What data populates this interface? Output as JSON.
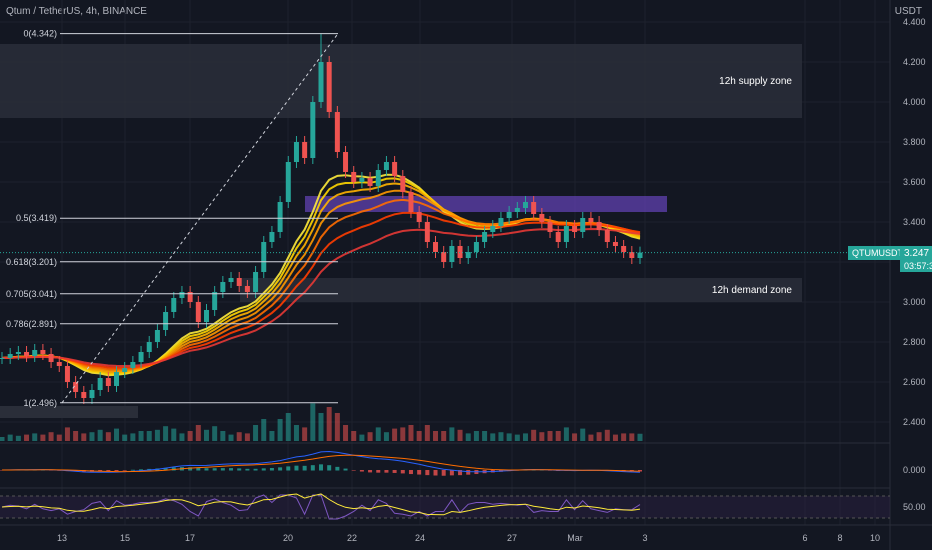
{
  "header": {
    "title": "Qtum / TetherUS, 4h, BINANCE",
    "currency": "USDT"
  },
  "ticker": {
    "symbol": "QTUMUSDT",
    "price": "3.247",
    "countdown": "03:57:36"
  },
  "chart_data": {
    "type": "candlestick",
    "y_axis": {
      "ylim": [
        2.3,
        4.4
      ],
      "ticks": [
        "4.400",
        "4.200",
        "4.000",
        "3.800",
        "3.600",
        "3.400",
        "3.200",
        "3.000",
        "2.800",
        "2.600",
        "2.400"
      ]
    },
    "x_axis": {
      "ticks": [
        "13",
        "15",
        "17",
        "20",
        "22",
        "24",
        "27",
        "Mar",
        "3",
        "6",
        "8",
        "10"
      ]
    },
    "fib_levels": [
      {
        "label": "0(4.342)",
        "value": 4.342
      },
      {
        "label": "0.5(3.419)",
        "value": 3.419
      },
      {
        "label": "0.618(3.201)",
        "value": 3.201
      },
      {
        "label": "0.705(3.041)",
        "value": 3.041
      },
      {
        "label": "0.786(2.891)",
        "value": 2.891
      },
      {
        "label": "1(2.496)",
        "value": 2.496
      }
    ],
    "zones": [
      {
        "label": "12h supply zone",
        "top": 4.29,
        "bottom": 3.92
      },
      {
        "label": "12h demand zone",
        "top": 3.12,
        "bottom": 3.0
      }
    ],
    "close_series": [
      2.72,
      2.74,
      2.75,
      2.73,
      2.76,
      2.74,
      2.7,
      2.68,
      2.6,
      2.55,
      2.52,
      2.56,
      2.62,
      2.58,
      2.65,
      2.67,
      2.7,
      2.75,
      2.8,
      2.86,
      2.95,
      3.02,
      3.05,
      3.0,
      2.9,
      2.96,
      3.05,
      3.1,
      3.12,
      3.08,
      3.05,
      3.15,
      3.3,
      3.35,
      3.5,
      3.7,
      3.8,
      3.72,
      4.0,
      4.2,
      3.95,
      3.75,
      3.65,
      3.6,
      3.62,
      3.58,
      3.66,
      3.7,
      3.63,
      3.55,
      3.45,
      3.4,
      3.3,
      3.25,
      3.2,
      3.28,
      3.22,
      3.25,
      3.3,
      3.35,
      3.38,
      3.42,
      3.45,
      3.47,
      3.5,
      3.44,
      3.4,
      3.35,
      3.3,
      3.38,
      3.35,
      3.42,
      3.4,
      3.36,
      3.3,
      3.28,
      3.25,
      3.22,
      3.247
    ],
    "indicators": {
      "macd_axis_label": "0.000",
      "rsi_axis_label": "50.00"
    }
  }
}
